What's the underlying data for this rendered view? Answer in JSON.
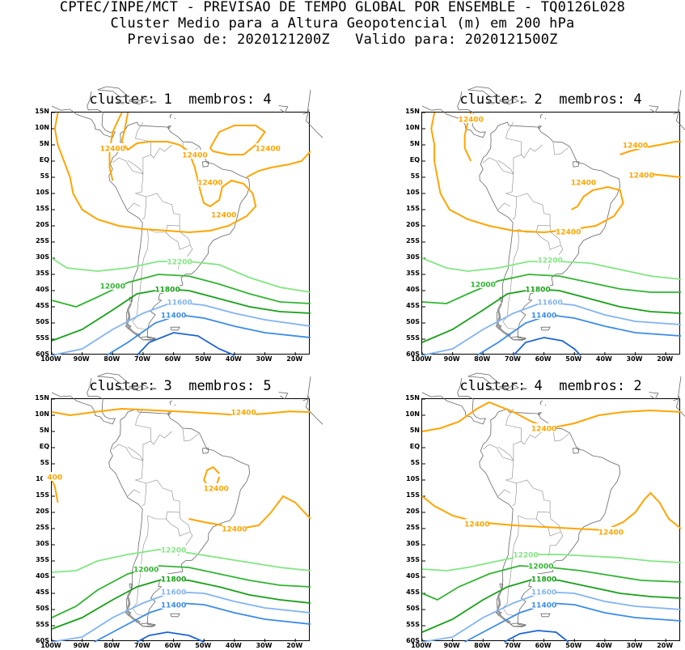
{
  "header": {
    "line1": "CPTEC/INPE/MCT - PREVISAO DE TEMPO GLOBAL POR ENSEMBLE - TQ0126L028",
    "line2": "Cluster Medio para a Altura Geopotencial (m) em 200 hPa",
    "line3": "Previsao de: 2020121200Z   Valido para: 2020121500Z"
  },
  "colors": {
    "c12400": "#ffa500",
    "c12200": "#82e682",
    "c12000": "#32b432",
    "c11800": "#18a018",
    "c11600": "#82b4f0",
    "c11400": "#3c8ce6",
    "c11200": "#1e64d2",
    "coast": "#666666"
  },
  "axes": {
    "lat_labels": [
      "15N",
      "10N",
      "5N",
      "EQ",
      "5S",
      "10S",
      "15S",
      "20S",
      "25S",
      "30S",
      "35S",
      "40S",
      "45S",
      "50S",
      "55S",
      "60S"
    ],
    "lon_labels": [
      "100W",
      "90W",
      "80W",
      "70W",
      "60W",
      "50W",
      "40W",
      "30W",
      "20W"
    ]
  },
  "panels": [
    {
      "title": "cluster: 1  membros: 4",
      "labels": [
        "12400",
        "12400",
        "12400",
        "12400",
        "12400",
        "12200",
        "12000",
        "11800",
        "11600",
        "11400"
      ]
    },
    {
      "title": "cluster: 2  membros: 4",
      "labels": [
        "12400",
        "12400",
        "12400",
        "12400",
        "12400",
        "12200",
        "12000",
        "11800",
        "11600",
        "11400"
      ]
    },
    {
      "title": "cluster: 3  membros: 5",
      "labels": [
        "12400",
        "12400",
        "12400",
        "400",
        "12200",
        "12000",
        "11800",
        "11600",
        "11400"
      ]
    },
    {
      "title": "cluster: 4  membros: 2",
      "labels": [
        "12400",
        "12400",
        "12400",
        "12200",
        "12000",
        "11800",
        "11600",
        "11400"
      ]
    }
  ]
}
